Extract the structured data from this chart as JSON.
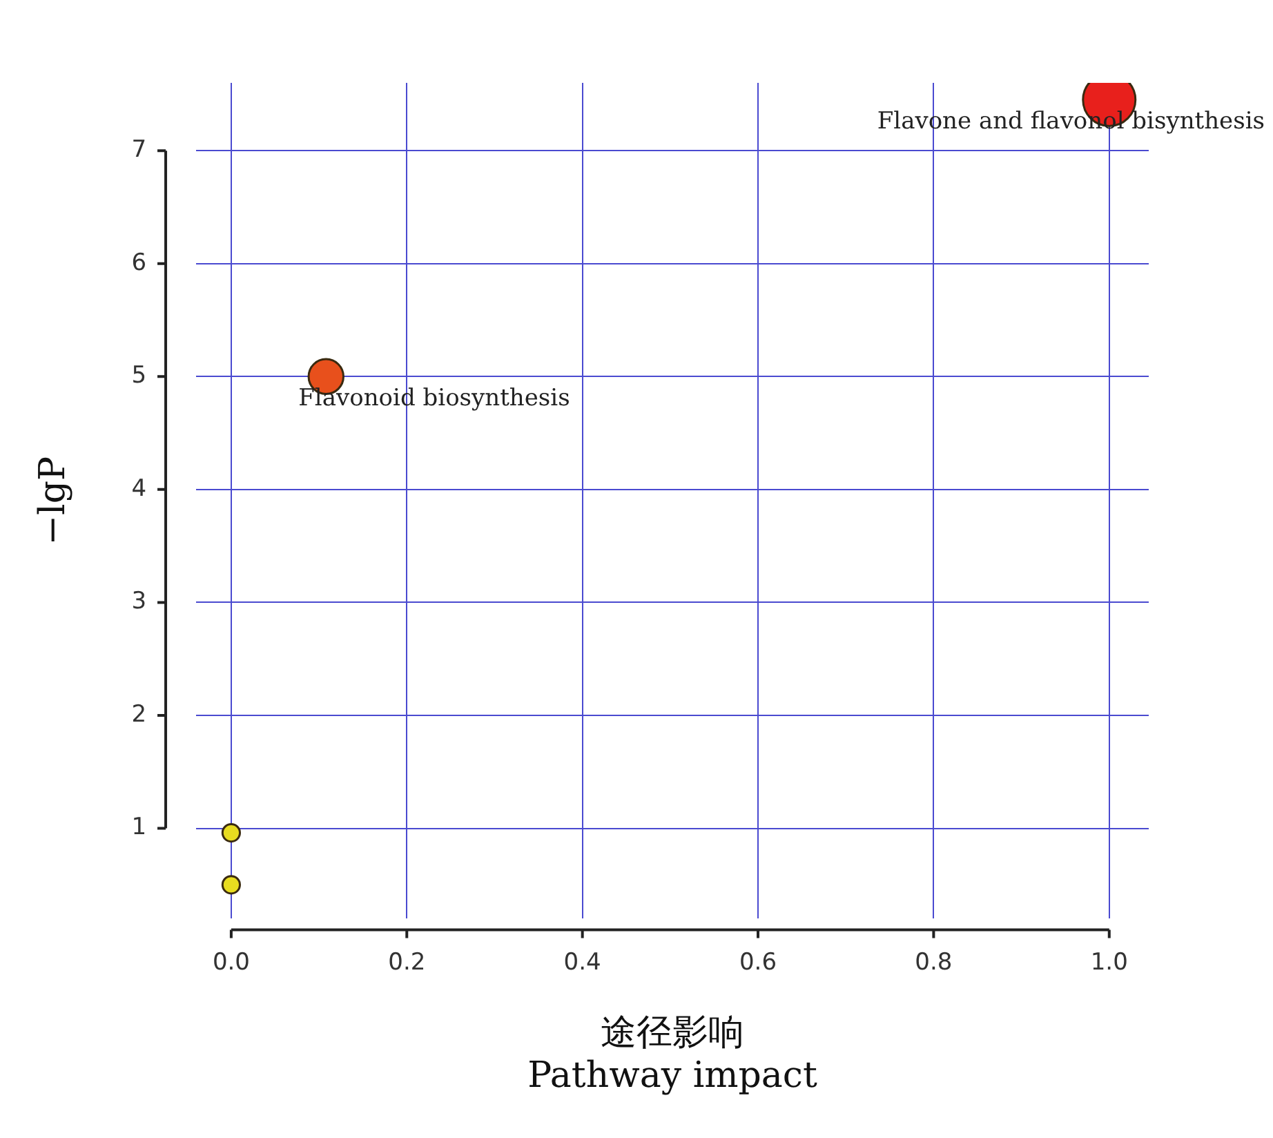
{
  "chart_data": {
    "type": "bubble",
    "xlabel": "途径影响\nPathway impact",
    "ylabel": "−lgP",
    "x": [
      1.0,
      0.108,
      0.0,
      0.0
    ],
    "values": [
      7.45,
      5.0,
      0.96,
      0.5
    ],
    "sizes": [
      1,
      0.44,
      0.11,
      0.11
    ],
    "colors": [
      "#e8201c",
      "#e8501c",
      "#e8dc20",
      "#e8dc20"
    ],
    "xlim": [
      -0.04,
      1.045
    ],
    "ylim": [
      0.2,
      7.6
    ],
    "xticks": [
      {
        "value": 0,
        "label": "0.0"
      },
      0.2,
      0.4,
      0.6,
      0.8,
      {
        "value": 1,
        "label": "1.0"
      }
    ],
    "yticks": [
      1,
      2,
      3,
      4,
      5,
      6,
      7
    ],
    "grid": true,
    "annotations": [
      {
        "text": "Flavone and flavonol bisynthesis",
        "x": 1.0,
        "y": 7.45
      },
      {
        "text": "Flavonoid biosynthesis",
        "x": 0.108,
        "y": 5.0
      }
    ]
  }
}
